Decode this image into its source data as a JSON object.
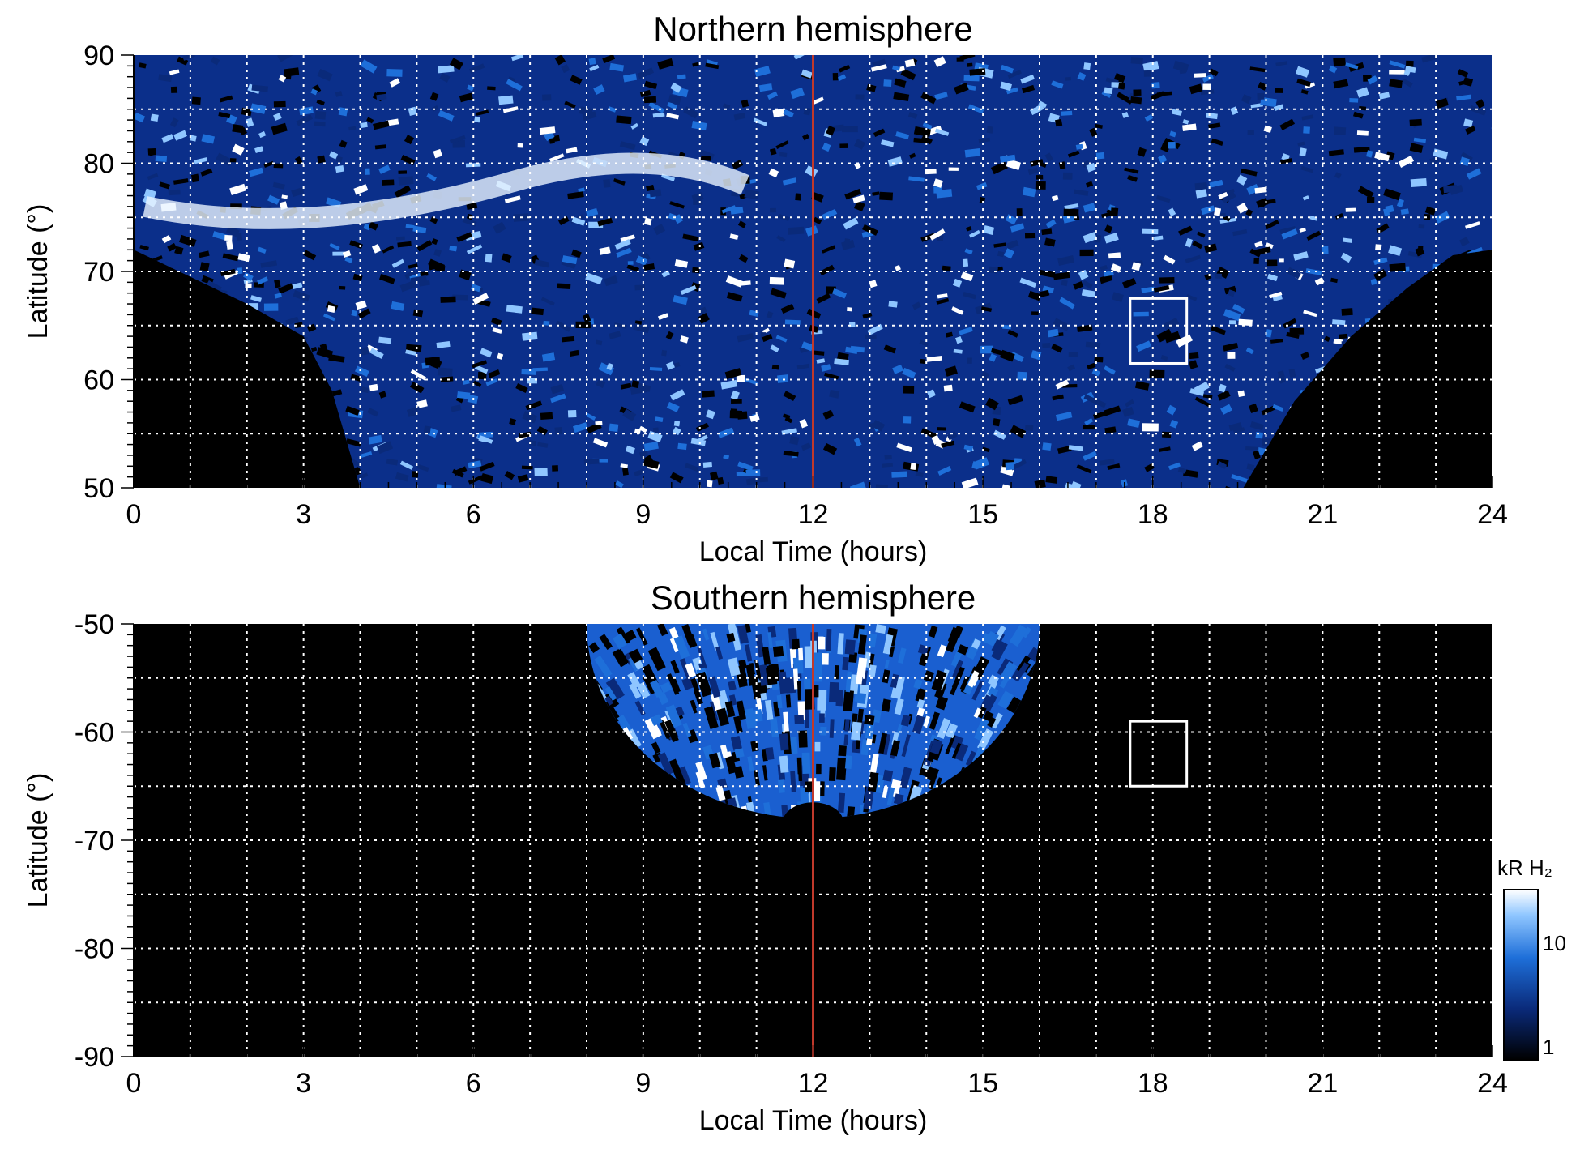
{
  "chart_data": [
    {
      "type": "heatmap",
      "title": "Northern hemisphere",
      "xlabel": "Local Time (hours)",
      "ylabel": "Latitude (°)",
      "xlim": [
        0,
        24
      ],
      "ylim": [
        50,
        90
      ],
      "x_ticks": [
        "0",
        "3",
        "6",
        "9",
        "12",
        "15",
        "18",
        "21",
        "24"
      ],
      "y_ticks": [
        "50",
        "60",
        "70",
        "80",
        "90"
      ],
      "grid": "dotted, every 1 hour and 5 degrees",
      "noon_line_local_time": 12,
      "marked_box": {
        "local_time": [
          17.6,
          18.6
        ],
        "latitude": [
          61.5,
          67.5
        ]
      },
      "coverage_note": "emission data above the visible boundary; night side below boundary blank",
      "boundary": [
        [
          0,
          72
        ],
        [
          1,
          69.5
        ],
        [
          2,
          67
        ],
        [
          3,
          64
        ],
        [
          3.5,
          59
        ],
        [
          4,
          50
        ],
        [
          19.6,
          50
        ],
        [
          20.5,
          58
        ],
        [
          21.5,
          64
        ],
        [
          22.5,
          68.5
        ],
        [
          23.3,
          71.5
        ],
        [
          24,
          72
        ]
      ]
    },
    {
      "type": "heatmap",
      "title": "Southern hemisphere",
      "xlabel": "Local Time (hours)",
      "ylabel": "Latitude (°)",
      "xlim": [
        0,
        24
      ],
      "ylim": [
        -90,
        -50
      ],
      "x_ticks": [
        "0",
        "3",
        "6",
        "9",
        "12",
        "15",
        "18",
        "21",
        "24"
      ],
      "y_ticks": [
        "-50",
        "-60",
        "-70",
        "-80",
        "-90"
      ],
      "grid": "dotted, every 1 hour and 5 degrees",
      "noon_line_local_time": 12,
      "marked_box": {
        "local_time": [
          17.6,
          18.6
        ],
        "latitude": [
          -65,
          -59
        ]
      },
      "coverage": {
        "local_time": [
          8,
          16
        ],
        "latitude_edge": -68
      }
    }
  ],
  "colorbar": {
    "label": "kR H₂",
    "tick_labels": [
      "1",
      "10"
    ],
    "scale": "log",
    "colors": [
      "#000000",
      "#0a2a7a",
      "#1e6fd9",
      "#8fc6ff",
      "#ffffff"
    ]
  },
  "colors": {
    "background": "#000000",
    "noon_line": "#c0392b",
    "grid": "#ffffff"
  }
}
